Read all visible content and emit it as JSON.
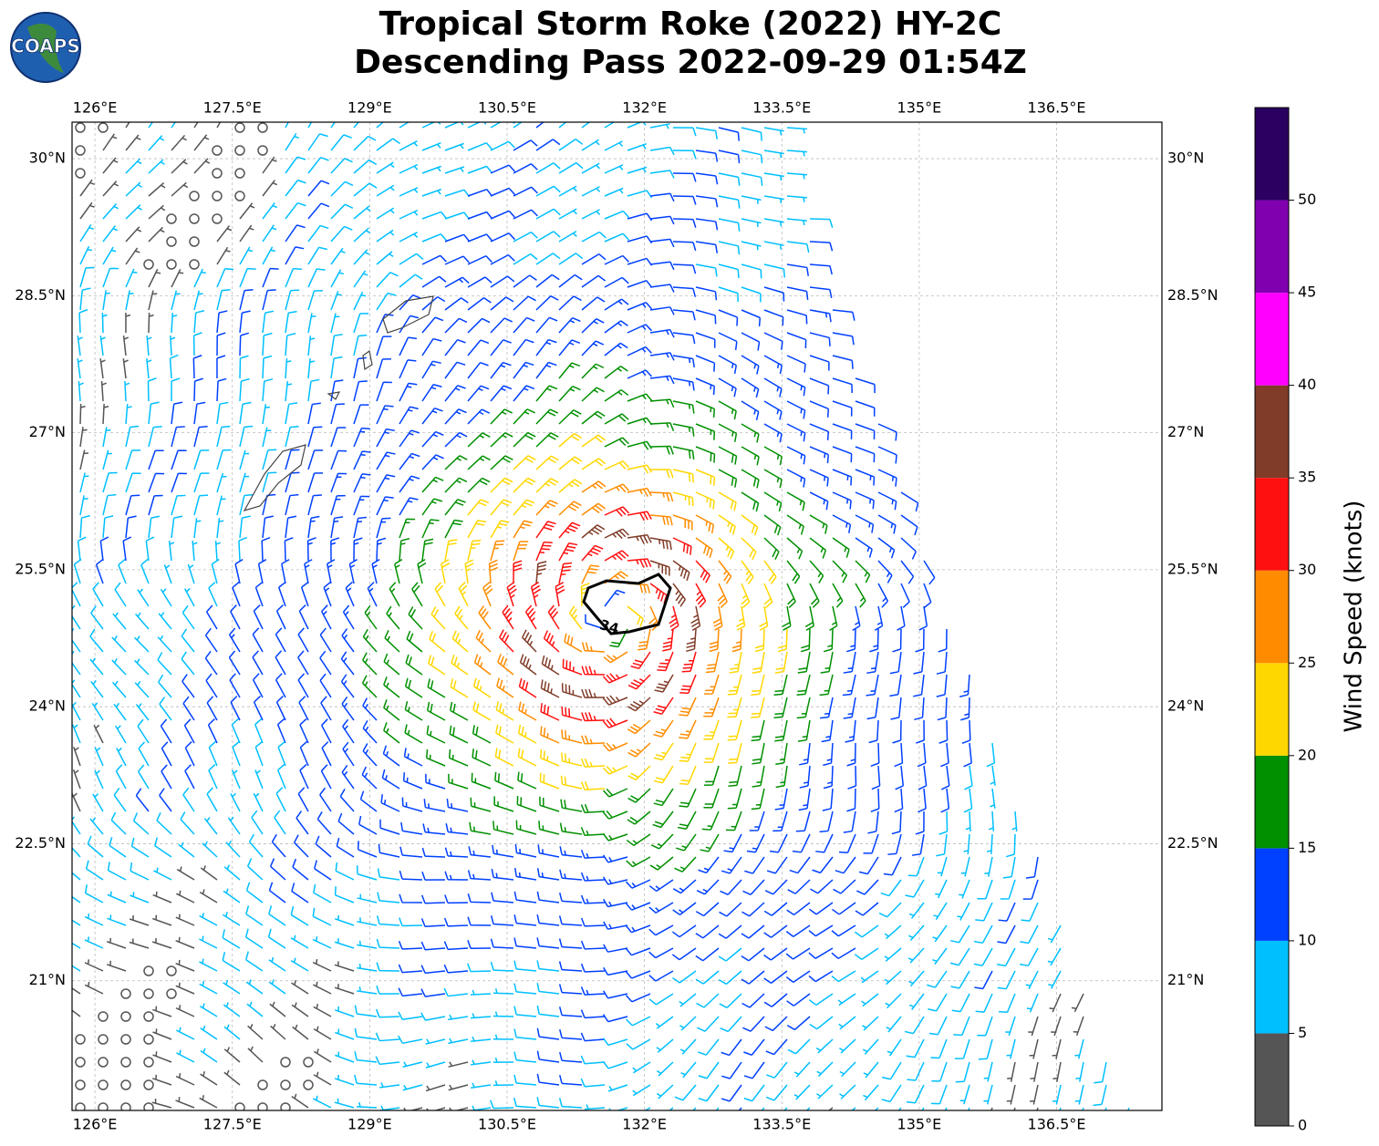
{
  "chart_data": {
    "type": "barb-map",
    "title": "Tropical Storm Roke (2022) HY-2C",
    "subtitle": "Descending Pass 2022-09-29 01:54Z",
    "logo": "COAPS",
    "xlim": [
      125.75,
      137.65
    ],
    "ylim": [
      19.58,
      30.4
    ],
    "xticks": [
      {
        "value": 126,
        "label": "126°E"
      },
      {
        "value": 127.5,
        "label": "127.5°E"
      },
      {
        "value": 129,
        "label": "129°E"
      },
      {
        "value": 130.5,
        "label": "130.5°E"
      },
      {
        "value": 132,
        "label": "132°E"
      },
      {
        "value": 133.5,
        "label": "133.5°E"
      },
      {
        "value": 135,
        "label": "135°E"
      },
      {
        "value": 136.5,
        "label": "136.5°E"
      }
    ],
    "yticks": [
      {
        "value": 21,
        "label": "21°N"
      },
      {
        "value": 22.5,
        "label": "22.5°N"
      },
      {
        "value": 24,
        "label": "24°N"
      },
      {
        "value": 25.5,
        "label": "25.5°N"
      },
      {
        "value": 27,
        "label": "27°N"
      },
      {
        "value": 28.5,
        "label": "28.5°N"
      },
      {
        "value": 30,
        "label": "30°N"
      }
    ],
    "grid": true,
    "wind_contour": {
      "value": 34
    },
    "colorbar": {
      "label": "Wind Speed (knots)",
      "bins": [
        0,
        5,
        10,
        15,
        20,
        25,
        30,
        35,
        40,
        45,
        50,
        55
      ],
      "colors": [
        "#555555",
        "#00bfff",
        "#0040ff",
        "#009000",
        "#ffd700",
        "#ff8c00",
        "#ff1010",
        "#803c28",
        "#ff00ff",
        "#8000b0",
        "#2a0060"
      ],
      "ticks": [
        0,
        5,
        10,
        15,
        20,
        25,
        30,
        35,
        40,
        45,
        50
      ]
    }
  }
}
